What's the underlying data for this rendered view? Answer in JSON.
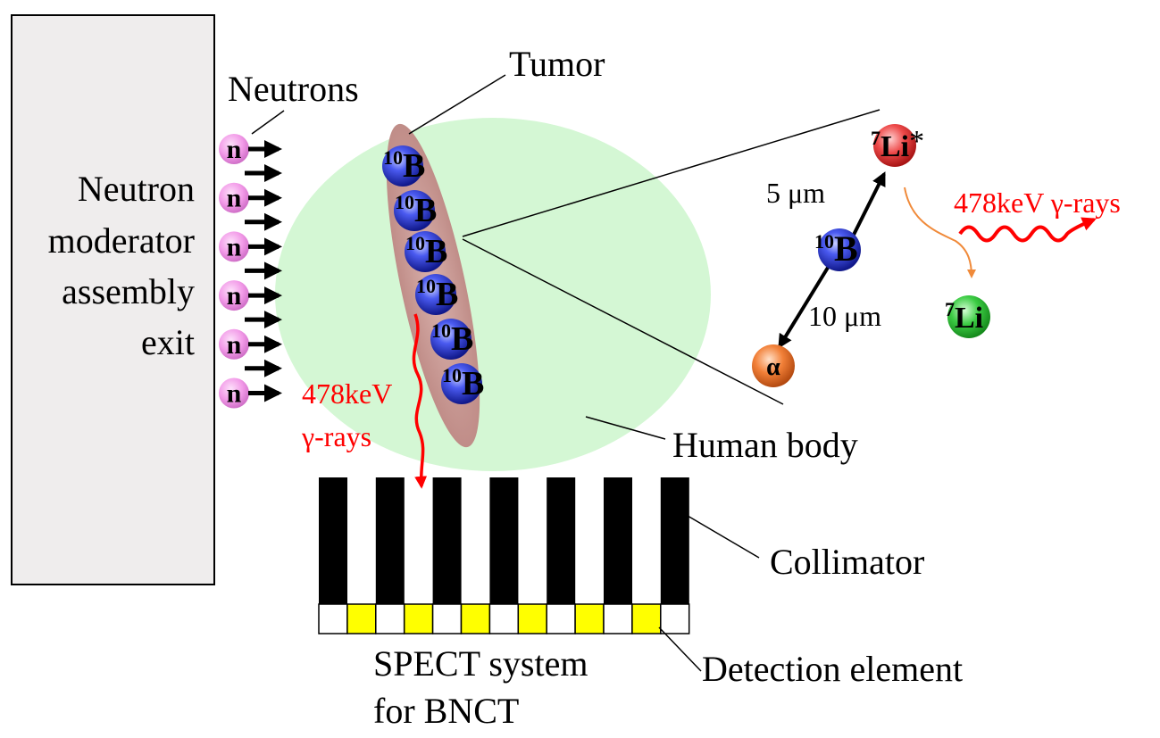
{
  "moderator": {
    "lines": [
      "Neutron",
      "moderator",
      "assembly",
      "exit"
    ]
  },
  "neutrons": {
    "label": "Neutrons",
    "symbol": "n",
    "count": 6
  },
  "tumor": {
    "label": "Tumor",
    "boron_mass": "10",
    "boron_symbol": "B",
    "boron_count": 6
  },
  "body": {
    "label": "Human body"
  },
  "gamma_in_body": {
    "line1": "478keV",
    "line2": "γ-rays"
  },
  "reaction": {
    "li_excited_mass": "7",
    "li_excited_symbol": "Li",
    "li_excited_star": "*",
    "boron_mass": "10",
    "boron_symbol": "B",
    "li_mass": "7",
    "li_symbol": "Li",
    "alpha_symbol": "α",
    "range_li": "5 μm",
    "range_alpha": "10 μm",
    "gamma_label": "478keV γ-rays"
  },
  "collimator": {
    "label": "Collimator",
    "septa_count": 7
  },
  "detector": {
    "label": "Detection element",
    "cells": 13
  },
  "system": {
    "line1": "SPECT system",
    "line2": "for BNCT"
  },
  "colors": {
    "body": "#d4f7d4",
    "tumor": "#c89a95",
    "neutron": "#f29ae8",
    "boron": "#2a3ad8",
    "li_excited": "#e83a3a",
    "li": "#33c43a",
    "alpha": "#f07a30",
    "gamma": "#ff0000",
    "decay_arrow": "#f08a3a",
    "detector_yellow": "#ffff00"
  }
}
